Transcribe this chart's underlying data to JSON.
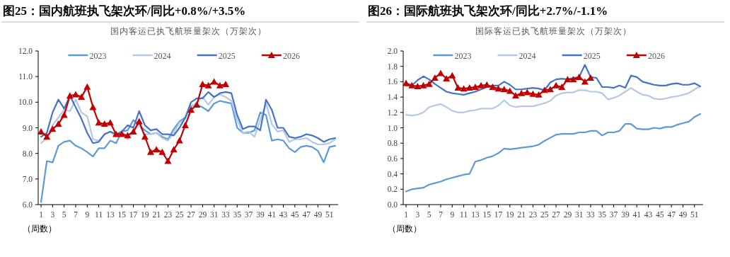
{
  "chart_data": [
    {
      "type": "line",
      "title": "图25：国内航班执飞架次环/同比+0.8%/+3.5%",
      "subtitle": "国内客运已执飞航班量架次（万架次）",
      "xlabel": "（周数）",
      "x": [
        1,
        2,
        3,
        4,
        5,
        6,
        7,
        8,
        9,
        10,
        11,
        12,
        13,
        14,
        15,
        16,
        17,
        18,
        19,
        20,
        21,
        22,
        23,
        24,
        25,
        26,
        27,
        28,
        29,
        30,
        31,
        32,
        33,
        34,
        35,
        36,
        37,
        38,
        39,
        40,
        41,
        42,
        43,
        44,
        45,
        46,
        47,
        48,
        49,
        50,
        51,
        52
      ],
      "xlim": [
        0.5,
        52.5
      ],
      "xticks": [
        1,
        3,
        5,
        7,
        9,
        11,
        13,
        15,
        17,
        19,
        21,
        23,
        25,
        27,
        29,
        31,
        33,
        35,
        37,
        39,
        41,
        43,
        45,
        47,
        49,
        51
      ],
      "ylim": [
        6,
        12
      ],
      "yticks": [
        {
          "value": 6,
          "label": "6.0"
        },
        {
          "value": 7,
          "label": "7.0"
        },
        {
          "value": 8,
          "label": "8.0"
        },
        {
          "value": 9,
          "label": "9.0"
        },
        {
          "value": 10,
          "label": "10.0"
        },
        {
          "value": 11,
          "label": "11.0"
        },
        {
          "value": 12,
          "label": "12.0"
        }
      ],
      "legend": "top",
      "grid": false,
      "series": [
        {
          "name": "2023",
          "color": "#5b9bd5",
          "values": [
            6.1,
            7.7,
            7.65,
            8.3,
            8.45,
            8.5,
            8.3,
            8.2,
            8.05,
            7.88,
            8.2,
            8.2,
            8.5,
            8.4,
            8.85,
            8.9,
            9.3,
            9.1,
            8.9,
            8.75,
            8.8,
            8.65,
            8.55,
            8.95,
            9.25,
            9.4,
            9.85,
            9.9,
            9.8,
            9.65,
            9.95,
            10.05,
            10.0,
            9.95,
            9.0,
            8.8,
            8.8,
            8.9,
            9.6,
            9.5,
            8.5,
            8.55,
            8.5,
            8.2,
            8.05,
            8.25,
            8.3,
            8.25,
            8.1,
            7.65,
            8.25,
            8.3
          ]
        },
        {
          "name": "2024",
          "color": "#b4c7e7",
          "values": [
            8.4,
            8.6,
            9.1,
            9.4,
            9.7,
            9.65,
            10.1,
            9.6,
            9.45,
            8.55,
            8.5,
            8.75,
            8.85,
            8.65,
            8.9,
            8.55,
            8.85,
            9.1,
            8.75,
            8.75,
            8.8,
            8.6,
            8.5,
            8.8,
            9.2,
            9.35,
            9.8,
            10.0,
            10.2,
            9.9,
            10.2,
            10.3,
            10.2,
            10.05,
            9.3,
            8.8,
            8.85,
            8.65,
            9.3,
            9.95,
            9.15,
            8.85,
            8.9,
            8.45,
            8.55,
            8.55,
            8.6,
            8.45,
            8.35,
            8.35,
            8.4,
            8.55
          ]
        },
        {
          "name": "2025",
          "color": "#4472c4",
          "values": [
            8.65,
            8.8,
            9.6,
            10.1,
            9.75,
            10.25,
            9.8,
            9.35,
            8.8,
            8.4,
            8.45,
            8.75,
            8.85,
            8.75,
            8.85,
            9.1,
            9.0,
            9.65,
            9.1,
            8.9,
            8.95,
            8.75,
            8.75,
            8.7,
            9.0,
            9.4,
            10.0,
            10.15,
            10.15,
            10.4,
            10.2,
            10.35,
            10.4,
            10.35,
            9.5,
            8.95,
            9.05,
            9.05,
            8.9,
            10.1,
            9.7,
            9.0,
            9.0,
            8.65,
            8.6,
            8.65,
            8.75,
            8.7,
            8.6,
            8.45,
            8.55,
            8.6
          ]
        },
        {
          "name": "2026",
          "color": "#c00000",
          "marker": "triangle",
          "values": [
            8.85,
            8.65,
            8.95,
            9.15,
            9.5,
            10.25,
            10.3,
            10.2,
            10.6,
            9.8,
            9.2,
            9.15,
            9.2,
            8.75,
            8.75,
            8.7,
            8.85,
            9.25,
            8.65,
            8.05,
            8.15,
            8.05,
            7.7,
            8.15,
            8.5,
            9.1,
            9.7,
            9.9,
            10.7,
            10.65,
            10.8,
            10.65,
            10.7,
            null,
            null,
            null,
            null,
            null,
            null,
            null,
            null,
            null,
            null,
            null,
            null,
            null,
            null,
            null,
            null,
            null,
            null,
            null
          ]
        }
      ]
    },
    {
      "type": "line",
      "title": "图26：国际航班执飞架次环/同比+2.7%/-1.1%",
      "subtitle": "国际客运已执飞航班量架次（万架次）",
      "xlabel": "（周数）",
      "x": [
        1,
        2,
        3,
        4,
        5,
        6,
        7,
        8,
        9,
        10,
        11,
        12,
        13,
        14,
        15,
        16,
        17,
        18,
        19,
        20,
        21,
        22,
        23,
        24,
        25,
        26,
        27,
        28,
        29,
        30,
        31,
        32,
        33,
        34,
        35,
        36,
        37,
        38,
        39,
        40,
        41,
        42,
        43,
        44,
        45,
        46,
        47,
        48,
        49,
        50,
        51,
        52
      ],
      "xlim": [
        0.5,
        52.5
      ],
      "xticks": [
        1,
        3,
        5,
        7,
        9,
        11,
        13,
        15,
        17,
        19,
        21,
        23,
        25,
        27,
        29,
        31,
        33,
        35,
        37,
        39,
        41,
        43,
        45,
        47,
        49,
        51
      ],
      "ylim": [
        0,
        2
      ],
      "yticks": [
        {
          "value": 0,
          "label": "0.0"
        },
        {
          "value": 0.2,
          "label": "0.2"
        },
        {
          "value": 0.4,
          "label": "0.4"
        },
        {
          "value": 0.6,
          "label": "0.6"
        },
        {
          "value": 0.8,
          "label": "0.8"
        },
        {
          "value": 1,
          "label": "1.0"
        },
        {
          "value": 1.2,
          "label": "1.2"
        },
        {
          "value": 1.4,
          "label": "1.4"
        },
        {
          "value": 1.6,
          "label": "1.6"
        },
        {
          "value": 1.8,
          "label": "1.8"
        },
        {
          "value": 2,
          "label": "2.0"
        }
      ],
      "legend": "top",
      "grid": false,
      "series": [
        {
          "name": "2023",
          "color": "#5b9bd5",
          "values": [
            0.17,
            0.2,
            0.21,
            0.22,
            0.26,
            0.28,
            0.3,
            0.33,
            0.35,
            0.37,
            0.39,
            0.4,
            0.56,
            0.58,
            0.61,
            0.63,
            0.67,
            0.73,
            0.72,
            0.73,
            0.74,
            0.75,
            0.76,
            0.78,
            0.83,
            0.87,
            0.91,
            0.92,
            0.92,
            0.92,
            0.94,
            0.94,
            0.96,
            0.96,
            0.9,
            0.94,
            0.94,
            0.96,
            1.05,
            1.05,
            0.99,
            0.98,
            0.98,
            1.0,
            0.99,
            1.01,
            1.01,
            1.04,
            1.06,
            1.08,
            1.14,
            1.18
          ]
        },
        {
          "name": "2024",
          "color": "#b4c7e7",
          "values": [
            1.17,
            1.16,
            1.17,
            1.2,
            1.27,
            1.29,
            1.31,
            1.27,
            1.22,
            1.2,
            1.2,
            1.22,
            1.23,
            1.25,
            1.25,
            1.25,
            1.29,
            1.36,
            1.29,
            1.27,
            1.28,
            1.28,
            1.28,
            1.3,
            1.32,
            1.35,
            1.42,
            1.45,
            1.46,
            1.46,
            1.49,
            1.49,
            1.47,
            1.47,
            1.45,
            1.37,
            1.39,
            1.42,
            1.47,
            1.52,
            1.47,
            1.43,
            1.42,
            1.38,
            1.37,
            1.38,
            1.4,
            1.41,
            1.43,
            1.45,
            1.5,
            1.54
          ]
        },
        {
          "name": "2025",
          "color": "#4472c4",
          "values": [
            1.55,
            1.55,
            1.62,
            1.67,
            1.63,
            1.57,
            1.52,
            1.47,
            1.45,
            1.44,
            1.43,
            1.45,
            1.47,
            1.5,
            1.53,
            1.55,
            1.55,
            1.6,
            1.56,
            1.5,
            1.5,
            1.51,
            1.52,
            1.51,
            1.49,
            1.59,
            1.63,
            1.64,
            1.63,
            1.65,
            1.66,
            1.82,
            1.66,
            1.65,
            1.53,
            1.53,
            1.52,
            1.55,
            1.52,
            1.68,
            1.66,
            1.6,
            1.58,
            1.56,
            1.55,
            1.55,
            1.57,
            1.58,
            1.56,
            1.56,
            1.58,
            1.54
          ]
        },
        {
          "name": "2026",
          "color": "#c00000",
          "marker": "triangle",
          "values": [
            1.58,
            1.55,
            1.54,
            1.55,
            1.57,
            1.65,
            1.71,
            1.64,
            1.68,
            1.52,
            1.51,
            1.52,
            1.53,
            1.55,
            1.56,
            1.53,
            1.51,
            1.5,
            1.48,
            1.42,
            1.45,
            1.46,
            1.44,
            1.43,
            1.49,
            1.5,
            1.55,
            1.53,
            1.63,
            1.63,
            1.66,
            1.6,
            1.65,
            null,
            null,
            null,
            null,
            null,
            null,
            null,
            null,
            null,
            null,
            null,
            null,
            null,
            null,
            null,
            null,
            null,
            null,
            null
          ]
        }
      ]
    }
  ]
}
